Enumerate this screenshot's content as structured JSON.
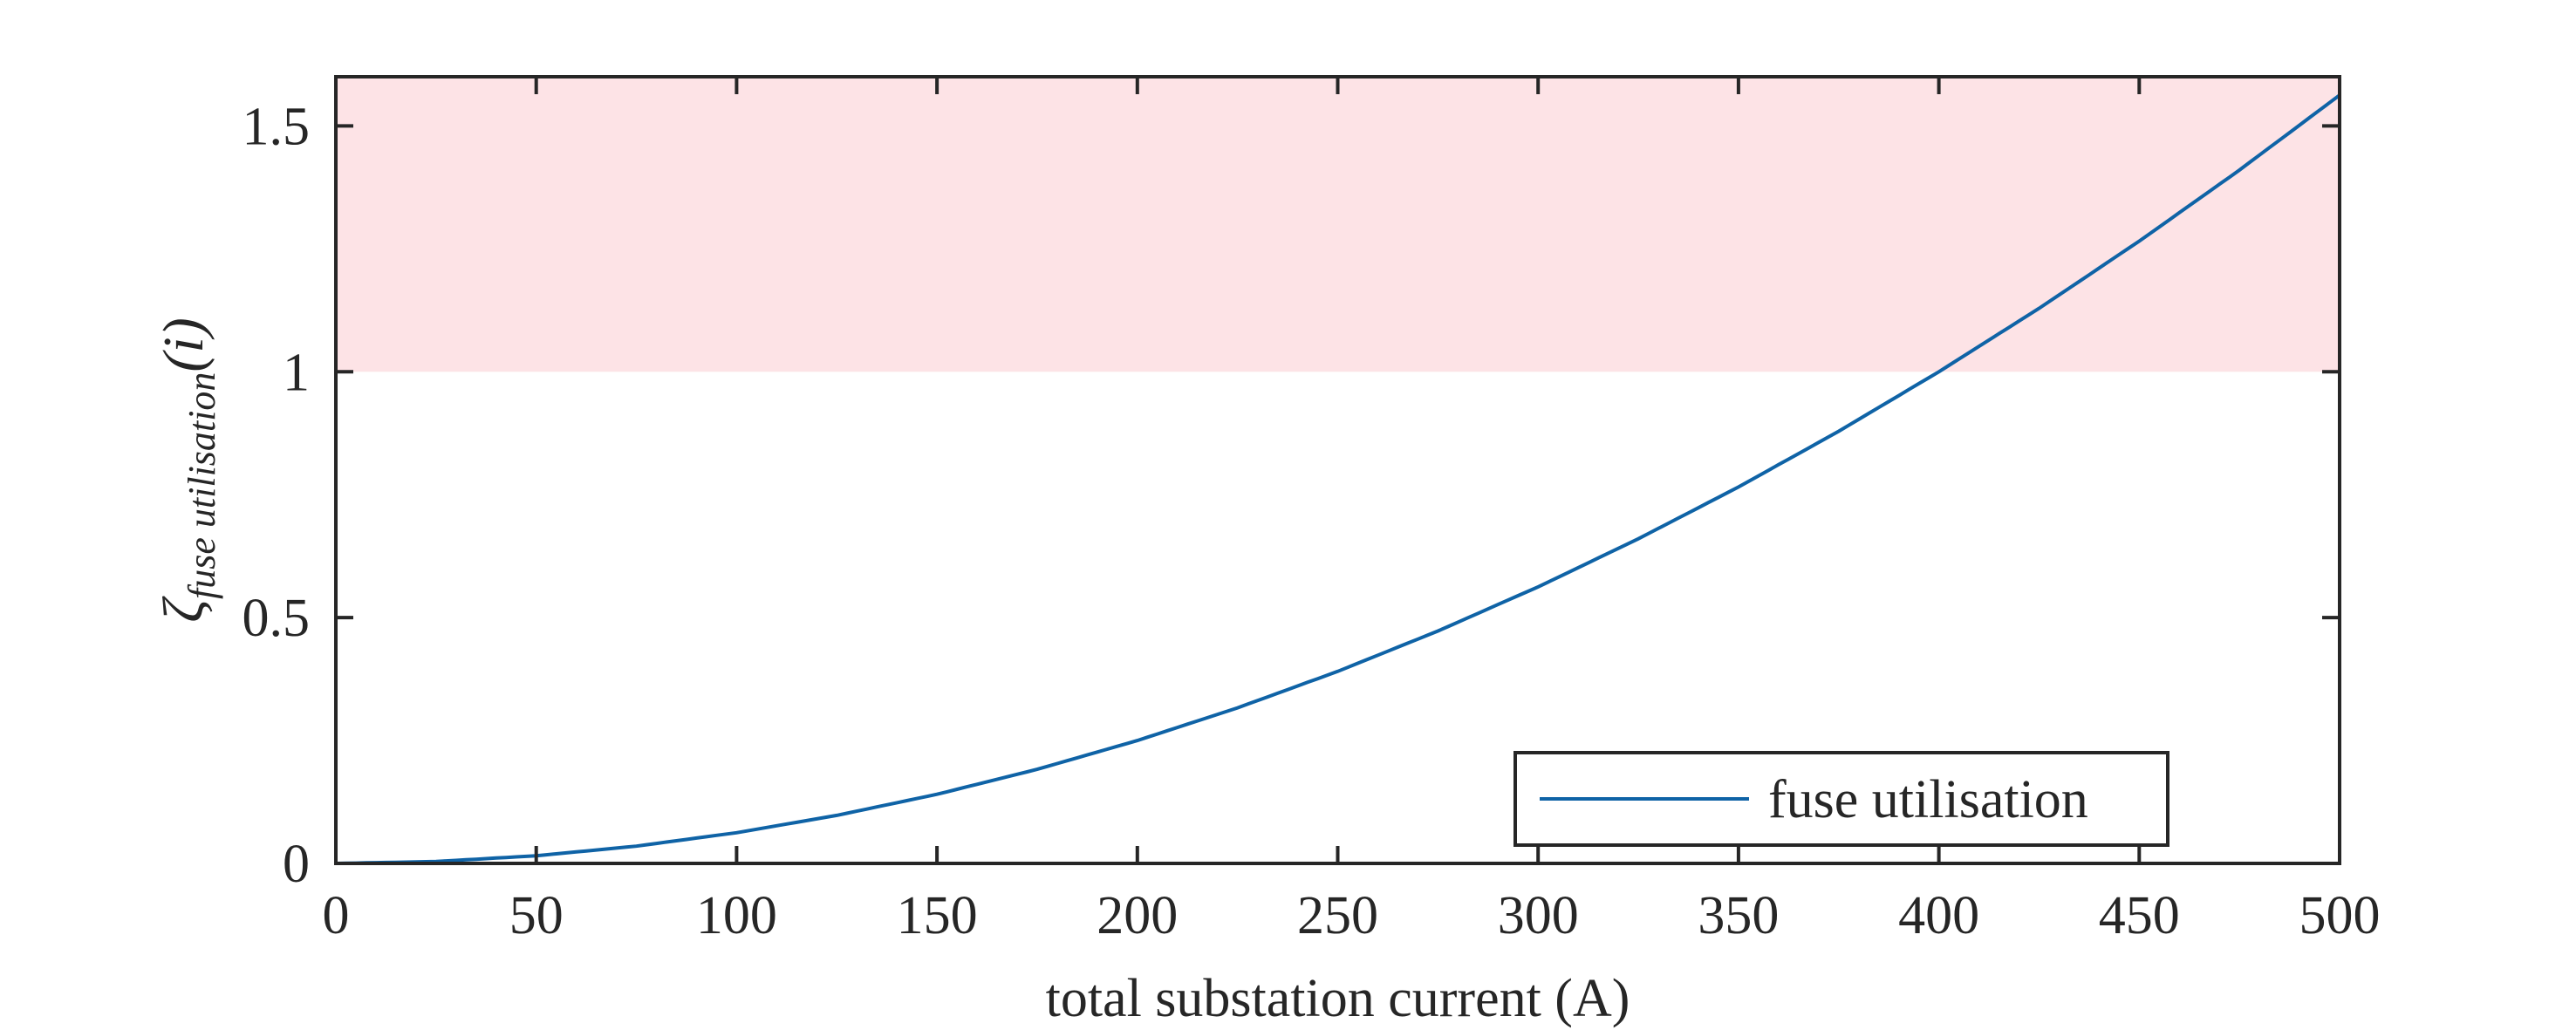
{
  "chart_data": {
    "type": "line",
    "xlabel": "total substation current (A)",
    "ylabel": {
      "symbol": "ζ",
      "subscript": "fuse utilisation",
      "argument": "(i)"
    },
    "xlim": [
      0,
      500
    ],
    "ylim": [
      0,
      1.6
    ],
    "xticks": [
      0,
      50,
      100,
      150,
      200,
      250,
      300,
      350,
      400,
      450,
      500
    ],
    "xtick_labels": [
      "0",
      "50",
      "100",
      "150",
      "200",
      "250",
      "300",
      "350",
      "400",
      "450",
      "500"
    ],
    "yticks": [
      0,
      0.5,
      1,
      1.5
    ],
    "ytick_labels": [
      "0",
      "0.5",
      "1",
      "1.5"
    ],
    "shaded_region": {
      "y_from": 1.0,
      "y_to": 1.6,
      "color": "#fde3e6"
    },
    "series": [
      {
        "name": "fuse utilisation",
        "color": "#0f63a6",
        "x": [
          0,
          25,
          50,
          75,
          100,
          125,
          150,
          175,
          200,
          225,
          250,
          275,
          300,
          325,
          350,
          375,
          400,
          425,
          450,
          475,
          500
        ],
        "y": [
          0,
          0.0039,
          0.0156,
          0.0352,
          0.0625,
          0.0977,
          0.1406,
          0.1914,
          0.25,
          0.3164,
          0.3906,
          0.4727,
          0.5625,
          0.6602,
          0.7656,
          0.8789,
          1.0,
          1.1289,
          1.2656,
          1.4102,
          1.5625
        ]
      }
    ],
    "legend": {
      "position": "bottom-right",
      "entries": [
        "fuse utilisation"
      ]
    },
    "grid": false
  }
}
